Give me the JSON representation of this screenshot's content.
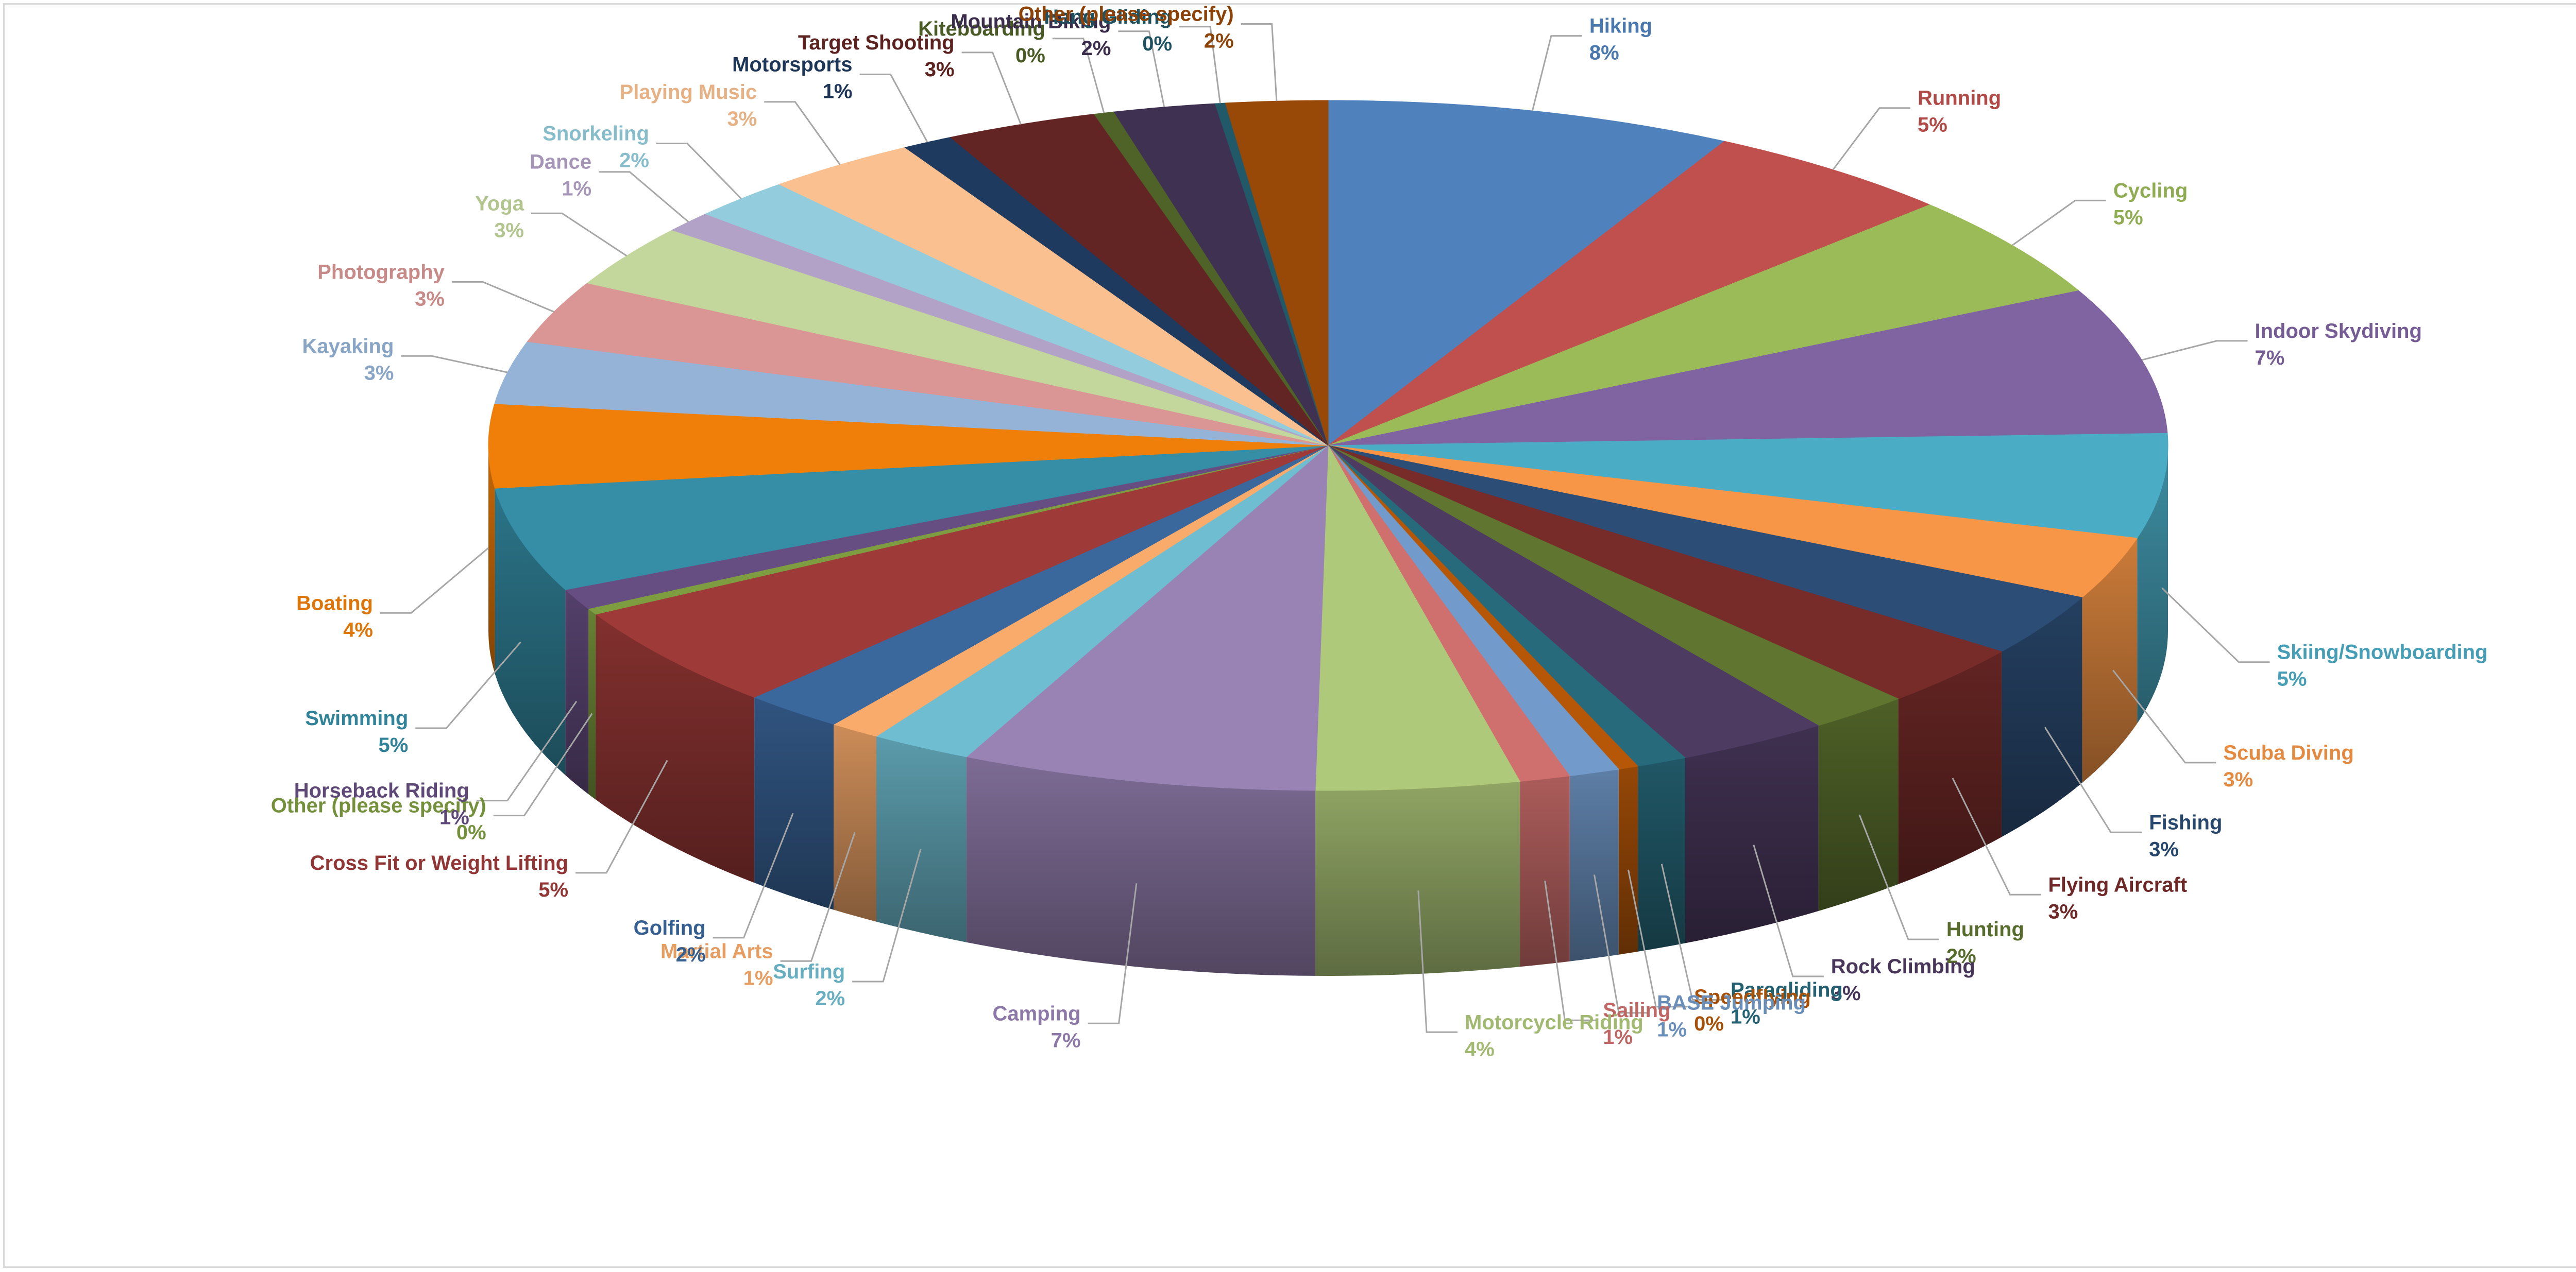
{
  "chart_data": {
    "type": "pie",
    "style": "3d-pie",
    "title": "",
    "slices": [
      {
        "label": "Hiking",
        "value": 8,
        "pct": "8%",
        "color": "#4F81BD"
      },
      {
        "label": "Running",
        "value": 5,
        "pct": "5%",
        "color": "#C0504D"
      },
      {
        "label": "Cycling",
        "value": 5,
        "pct": "5%",
        "color": "#9BBB59"
      },
      {
        "label": "Indoor Skydiving",
        "value": 7,
        "pct": "7%",
        "color": "#8064A2"
      },
      {
        "label": "Skiing/Snowboarding",
        "value": 5,
        "pct": "5%",
        "color": "#4BACC6"
      },
      {
        "label": "Scuba Diving",
        "value": 3,
        "pct": "3%",
        "color": "#F79646"
      },
      {
        "label": "Fishing",
        "value": 3,
        "pct": "3%",
        "color": "#2C4D75"
      },
      {
        "label": "Flying Aircraft",
        "value": 3,
        "pct": "3%",
        "color": "#772C2A"
      },
      {
        "label": "Hunting",
        "value": 2,
        "pct": "2%",
        "color": "#5F7530"
      },
      {
        "label": "Rock Climbing",
        "value": 3,
        "pct": "3%",
        "color": "#4D3B62"
      },
      {
        "label": "Paragliding",
        "value": 1,
        "pct": "1%",
        "color": "#276A7C"
      },
      {
        "label": "Speedflying",
        "value": 0.4,
        "pct": "0%",
        "color": "#B65708"
      },
      {
        "label": "BASE Jumping",
        "value": 1,
        "pct": "1%",
        "color": "#729ACA"
      },
      {
        "label": "Sailing",
        "value": 1,
        "pct": "1%",
        "color": "#D0706E"
      },
      {
        "label": "Motorcycle Riding",
        "value": 4,
        "pct": "4%",
        "color": "#AFC97A"
      },
      {
        "label": "Camping",
        "value": 7,
        "pct": "7%",
        "color": "#9983B5"
      },
      {
        "label": "Surfing",
        "value": 2,
        "pct": "2%",
        "color": "#6FBDD1"
      },
      {
        "label": "Martial Arts",
        "value": 1,
        "pct": "1%",
        "color": "#F9AB6B"
      },
      {
        "label": "Golfing",
        "value": 2,
        "pct": "2%",
        "color": "#3A679C"
      },
      {
        "label": "Cross Fit or Weight Lifting",
        "value": 5,
        "pct": "5%",
        "color": "#9E3B38"
      },
      {
        "label": "Other (please specify)",
        "value": 0.3,
        "pct": "0%",
        "color": "#7E9C40"
      },
      {
        "label": "Horseback Riding",
        "value": 1,
        "pct": "1%",
        "color": "#664E82"
      },
      {
        "label": "Swimming",
        "value": 5,
        "pct": "5%",
        "color": "#358EA6"
      },
      {
        "label": "Boating",
        "value": 4,
        "pct": "4%",
        "color": "#F07F09"
      },
      {
        "label": "Kayaking",
        "value": 3,
        "pct": "3%",
        "color": "#95B3D7"
      },
      {
        "label": "Photography",
        "value": 3,
        "pct": "3%",
        "color": "#D99694"
      },
      {
        "label": "Yoga",
        "value": 3,
        "pct": "3%",
        "color": "#C3D69B"
      },
      {
        "label": "Dance",
        "value": 1,
        "pct": "1%",
        "color": "#B3A2C7"
      },
      {
        "label": "Snorkeling",
        "value": 2,
        "pct": "2%",
        "color": "#93CDDD"
      },
      {
        "label": "Playing Music",
        "value": 3,
        "pct": "3%",
        "color": "#FAC090"
      },
      {
        "label": "Motorsports",
        "value": 1,
        "pct": "1%",
        "color": "#1F3A5F"
      },
      {
        "label": "Target Shooting",
        "value": 3,
        "pct": "3%",
        "color": "#632523"
      },
      {
        "label": "Kiteboarding",
        "value": 0.4,
        "pct": "0%",
        "color": "#4F6228"
      },
      {
        "label": "Mountain Biking",
        "value": 2,
        "pct": "2%",
        "color": "#3F3151"
      },
      {
        "label": "Hang Gliding",
        "value": 0.2,
        "pct": "0%",
        "color": "#215968"
      },
      {
        "label": "Other (please specify)",
        "value": 2,
        "pct": "2%",
        "color": "#984807"
      }
    ],
    "legend": "none",
    "data_labels": "category name and percentage, outside with leader lines"
  }
}
